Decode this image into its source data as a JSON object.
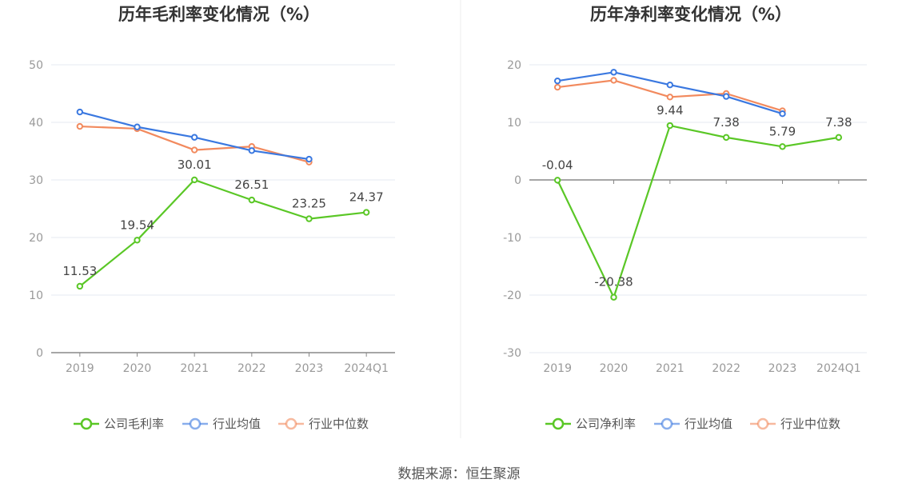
{
  "source": "数据来源：恒生聚源",
  "colors": {
    "company": "#5ac726",
    "industry_avg": "#3a78e0",
    "industry_median": "#f28a5e",
    "grid": "#e6e8f0",
    "axis": "#888888"
  },
  "chart_data": [
    {
      "type": "line",
      "title": "历年毛利率变化情况（%）",
      "categories": [
        "2019",
        "2020",
        "2021",
        "2022",
        "2023",
        "2024Q1"
      ],
      "ylim": [
        0,
        50
      ],
      "yticks": [
        0,
        10,
        20,
        30,
        40,
        50
      ],
      "grid": true,
      "legend_position": "bottom",
      "series": [
        {
          "name": "公司毛利率",
          "key": "company",
          "values": [
            11.53,
            19.54,
            30.01,
            26.51,
            23.25,
            24.37
          ],
          "labels": [
            "11.53",
            "19.54",
            "30.01",
            "26.51",
            "23.25",
            "24.37"
          ]
        },
        {
          "name": "行业均值",
          "key": "industry_avg",
          "values": [
            41.8,
            39.2,
            37.4,
            35.1,
            33.6,
            null
          ]
        },
        {
          "name": "行业中位数",
          "key": "industry_median",
          "values": [
            39.3,
            38.9,
            35.2,
            35.8,
            33.1,
            null
          ]
        }
      ]
    },
    {
      "type": "line",
      "title": "历年净利率变化情况（%）",
      "categories": [
        "2019",
        "2020",
        "2021",
        "2022",
        "2023",
        "2024Q1"
      ],
      "ylim": [
        -30,
        20
      ],
      "yticks": [
        -30,
        -20,
        -10,
        0,
        10,
        20
      ],
      "grid": true,
      "legend_position": "bottom",
      "series": [
        {
          "name": "公司净利率",
          "key": "company",
          "values": [
            -0.04,
            -20.38,
            9.44,
            7.38,
            5.79,
            7.38
          ],
          "labels": [
            "-0.04",
            "-20.38",
            "9.44",
            "7.38",
            "5.79",
            "7.38"
          ]
        },
        {
          "name": "行业均值",
          "key": "industry_avg",
          "values": [
            17.2,
            18.7,
            16.5,
            14.5,
            11.5,
            null
          ]
        },
        {
          "name": "行业中位数",
          "key": "industry_median",
          "values": [
            16.1,
            17.3,
            14.4,
            15.0,
            12.0,
            null
          ]
        }
      ]
    }
  ]
}
